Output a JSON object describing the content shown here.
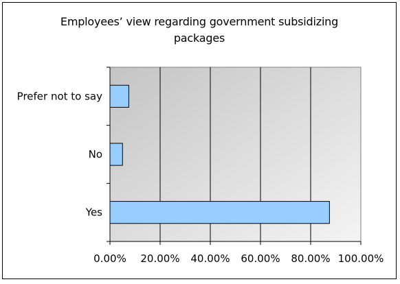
{
  "chart_data": {
    "type": "bar",
    "orientation": "horizontal",
    "title_lines": [
      "Employees’ view regarding government subsidizing",
      "packages"
    ],
    "categories": [
      "Prefer not to say",
      "No",
      "Yes"
    ],
    "values": [
      7.5,
      5.0,
      87.5
    ],
    "xlim": [
      0,
      100
    ],
    "x_ticks": [
      "0.00%",
      "20.00%",
      "40.00%",
      "60.00%",
      "80.00%",
      "100.00%"
    ],
    "grid": true,
    "legend": "none",
    "bar_color": "#99ccff",
    "bar_edge_color": "#000000"
  }
}
